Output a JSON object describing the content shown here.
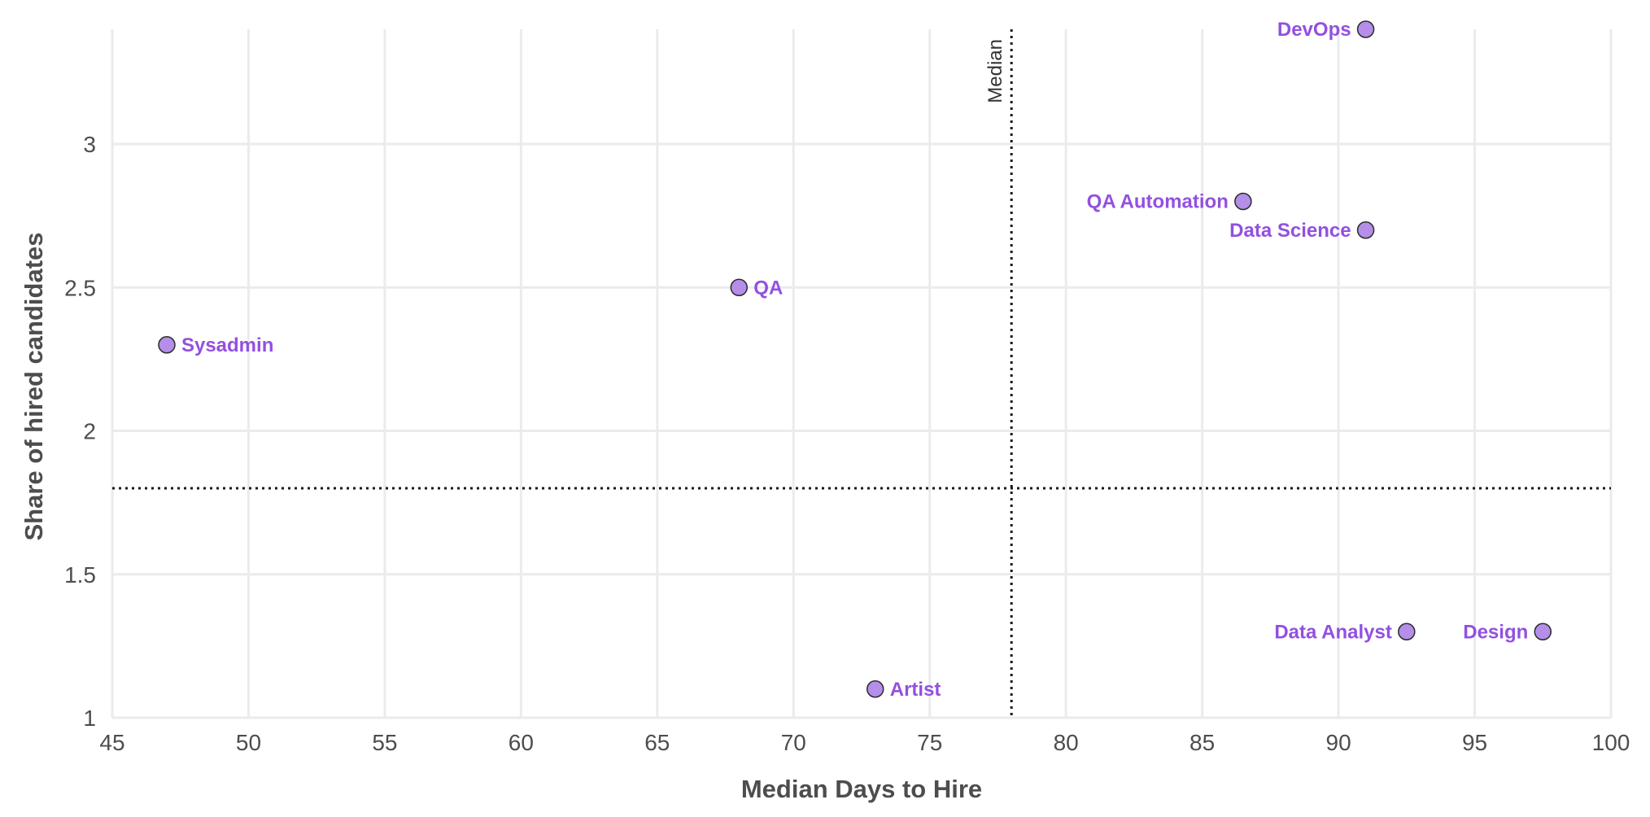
{
  "chart_data": {
    "type": "scatter",
    "xlabel": "Median Days to Hire",
    "ylabel": "Share of hired candidates",
    "xlim": [
      45,
      100
    ],
    "ylim": [
      1,
      3.4
    ],
    "xticks": [
      45,
      50,
      55,
      60,
      65,
      70,
      75,
      80,
      85,
      90,
      95,
      100
    ],
    "yticks": [
      1,
      1.5,
      2,
      2.5,
      3
    ],
    "grid": true,
    "colors": {
      "point_fill": "#b48ee8",
      "label": "#9350e0",
      "grid": "#ebebeb",
      "reference": "#1a1a1a"
    },
    "reference_lines": {
      "vertical": {
        "x": 78,
        "label": "Median"
      },
      "horizontal": {
        "y": 1.8
      }
    },
    "points": [
      {
        "label": "DevOps",
        "x": 91,
        "y": 3.4,
        "label_side": "left"
      },
      {
        "label": "QA Automation",
        "x": 86.5,
        "y": 2.8,
        "label_side": "left"
      },
      {
        "label": "Data Science",
        "x": 91,
        "y": 2.7,
        "label_side": "left"
      },
      {
        "label": "QA",
        "x": 68,
        "y": 2.5,
        "label_side": "right"
      },
      {
        "label": "Sysadmin",
        "x": 47,
        "y": 2.3,
        "label_side": "right"
      },
      {
        "label": "Data Analyst",
        "x": 92.5,
        "y": 1.3,
        "label_side": "left"
      },
      {
        "label": "Design",
        "x": 97.5,
        "y": 1.3,
        "label_side": "left"
      },
      {
        "label": "Artist",
        "x": 73,
        "y": 1.1,
        "label_side": "right"
      }
    ]
  }
}
